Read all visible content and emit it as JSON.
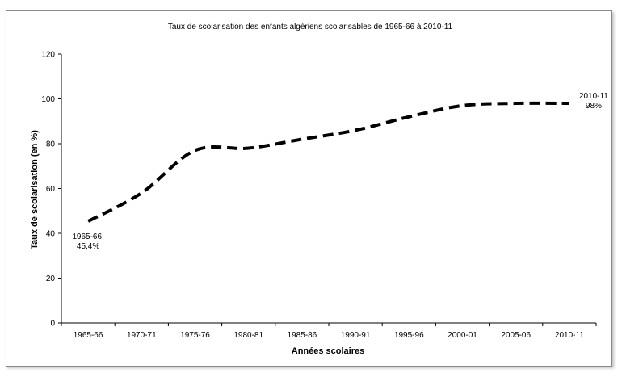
{
  "chart_data": {
    "type": "line",
    "title": "Taux de scolarisation des enfants algériens scolarisables de 1965-66 à 2010-11",
    "xlabel": "Années scolaires",
    "ylabel": "Taux de scolarisation (en %)",
    "ylim": [
      0,
      120
    ],
    "yticks": [
      "0",
      "20",
      "40",
      "60",
      "80",
      "100",
      "120"
    ],
    "categories": [
      "1965-66",
      "1970-71",
      "1975-76",
      "1980-81",
      "1985-86",
      "1990-91",
      "1995-96",
      "2000-01",
      "2005-06",
      "2010-11"
    ],
    "series": [
      {
        "values": [
          45.4,
          58,
          77,
          78,
          82,
          86,
          92,
          97,
          98,
          98
        ],
        "color": "#000000",
        "style": "dashed"
      }
    ],
    "annotations": [
      {
        "lines": [
          "1965-66;",
          "45,4%"
        ]
      },
      {
        "lines": [
          "2010-11",
          "98%"
        ]
      }
    ],
    "grid": false,
    "legend": "none"
  }
}
